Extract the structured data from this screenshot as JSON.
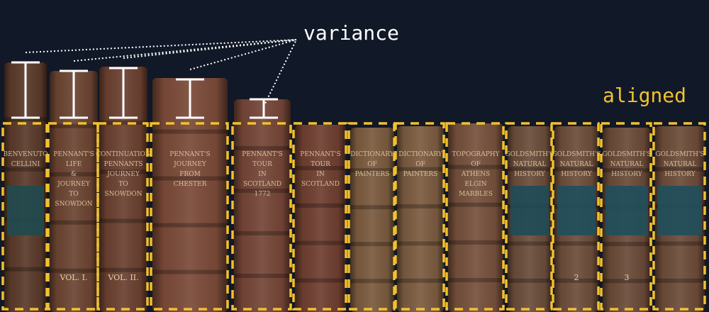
{
  "labels": {
    "variance": "variance",
    "aligned": "aligned"
  },
  "colors": {
    "background": "#111827",
    "aligned_accent": "#f2c12e",
    "marker": "#ffffff"
  },
  "books": [
    {
      "spine_title": "BENVENUTO CELLINI",
      "volume": ""
    },
    {
      "spine_title": "PENNANT'S LIFE & JOURNEY TO SNOWDON",
      "volume": "VOL. I."
    },
    {
      "spine_title": "CONTINUATION PENNANTS JOURNEY TO SNOWDON",
      "volume": "VOL. II."
    },
    {
      "spine_title": "PENNANT'S JOURNEY FROM CHESTER",
      "volume": ""
    },
    {
      "spine_title": "PENNANT'S TOUR IN SCOTLAND 1772",
      "volume": ""
    },
    {
      "spine_title": "PENNANT'S TOUR IN SCOTLAND",
      "volume": ""
    },
    {
      "spine_title": "DICTIONARY OF PAINTERS",
      "volume": ""
    },
    {
      "spine_title": "DICTIONARY OF PAINTERS",
      "volume": ""
    },
    {
      "spine_title": "TOPOGRAPHY OF ATHENS ELGIN MARBLES",
      "volume": ""
    },
    {
      "spine_title": "GOLDSMITH'S NATURAL HISTORY",
      "volume": ""
    },
    {
      "spine_title": "GOLDSMITH'S NATURAL HISTORY",
      "volume": "2"
    },
    {
      "spine_title": "GOLDSMITH'S NATURAL HISTORY",
      "volume": "3"
    },
    {
      "spine_title": "GOLDSMITH'S NATURAL HISTORY",
      "volume": ""
    }
  ]
}
